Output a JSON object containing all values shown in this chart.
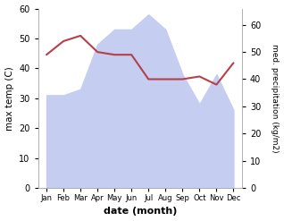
{
  "months": [
    "Jan",
    "Feb",
    "Mar",
    "Apr",
    "May",
    "Jun",
    "Jul",
    "Aug",
    "Sep",
    "Oct",
    "Nov",
    "Dec"
  ],
  "precipitation": [
    31,
    31,
    33,
    48,
    53,
    53,
    58,
    53,
    38,
    28,
    38,
    26
  ],
  "temperature": [
    49,
    54,
    56,
    50,
    49,
    49,
    40,
    40,
    40,
    41,
    38,
    46
  ],
  "temp_color": "#b5404a",
  "precip_fill_color": "#c5cdf0",
  "xlabel": "date (month)",
  "ylabel_left": "max temp (C)",
  "ylabel_right": "med. precipitation (kg/m2)",
  "ylim_left": [
    0,
    60
  ],
  "ylim_right": [
    0,
    66
  ],
  "yticks_left": [
    0,
    10,
    20,
    30,
    40,
    50,
    60
  ],
  "yticks_right": [
    0,
    10,
    20,
    30,
    40,
    50,
    60
  ],
  "background_color": "#ffffff"
}
